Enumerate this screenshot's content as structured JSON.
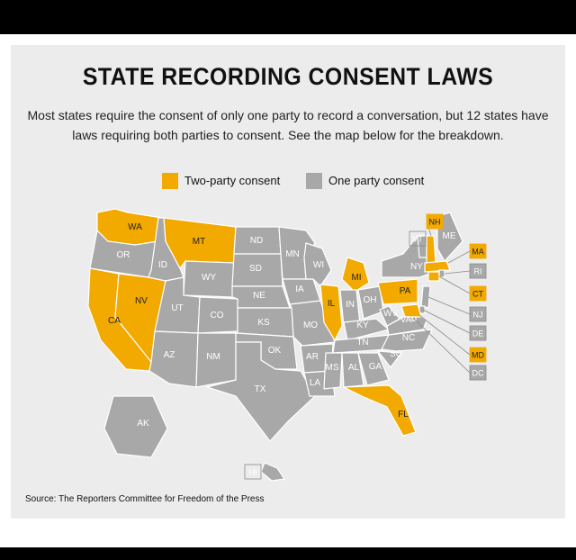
{
  "title": "STATE RECORDING CONSENT LAWS",
  "subtitle": "Most states require the consent of only one party to record a conversation, but 12 states have laws requiring both parties to consent. See the map below for the breakdown.",
  "legend": [
    {
      "label": "Two-party consent",
      "color": "#f2a900"
    },
    {
      "label": "One party consent",
      "color": "#a8a8a8"
    }
  ],
  "colors": {
    "two_party": "#f2a900",
    "one_party": "#a8a8a8",
    "border": "#ffffff",
    "background": "#ececec"
  },
  "source": "Source: The Reporters Committee for Freedom of the Press",
  "map_data": {
    "states": [
      {
        "id": "WA",
        "consent": "two"
      },
      {
        "id": "OR",
        "consent": "one"
      },
      {
        "id": "CA",
        "consent": "two"
      },
      {
        "id": "NV",
        "consent": "two"
      },
      {
        "id": "ID",
        "consent": "one"
      },
      {
        "id": "MT",
        "consent": "two"
      },
      {
        "id": "WY",
        "consent": "one"
      },
      {
        "id": "UT",
        "consent": "one"
      },
      {
        "id": "AZ",
        "consent": "one"
      },
      {
        "id": "CO",
        "consent": "one"
      },
      {
        "id": "NM",
        "consent": "one"
      },
      {
        "id": "ND",
        "consent": "one"
      },
      {
        "id": "SD",
        "consent": "one"
      },
      {
        "id": "NE",
        "consent": "one"
      },
      {
        "id": "KS",
        "consent": "one"
      },
      {
        "id": "OK",
        "consent": "one"
      },
      {
        "id": "TX",
        "consent": "one"
      },
      {
        "id": "MN",
        "consent": "one"
      },
      {
        "id": "IA",
        "consent": "one"
      },
      {
        "id": "MO",
        "consent": "one"
      },
      {
        "id": "AR",
        "consent": "one"
      },
      {
        "id": "LA",
        "consent": "one"
      },
      {
        "id": "WI",
        "consent": "one"
      },
      {
        "id": "IL",
        "consent": "two"
      },
      {
        "id": "MI",
        "consent": "two"
      },
      {
        "id": "IN",
        "consent": "one"
      },
      {
        "id": "OH",
        "consent": "one"
      },
      {
        "id": "KY",
        "consent": "one"
      },
      {
        "id": "TN",
        "consent": "one"
      },
      {
        "id": "MS",
        "consent": "one"
      },
      {
        "id": "AL",
        "consent": "one"
      },
      {
        "id": "GA",
        "consent": "one"
      },
      {
        "id": "FL",
        "consent": "two"
      },
      {
        "id": "SC",
        "consent": "one"
      },
      {
        "id": "NC",
        "consent": "one"
      },
      {
        "id": "VA",
        "consent": "one"
      },
      {
        "id": "WV",
        "consent": "one"
      },
      {
        "id": "PA",
        "consent": "two"
      },
      {
        "id": "NY",
        "consent": "one"
      },
      {
        "id": "ME",
        "consent": "one"
      },
      {
        "id": "AK",
        "consent": "one"
      },
      {
        "id": "HI",
        "consent": "one"
      },
      {
        "id": "VT",
        "consent": "one"
      },
      {
        "id": "NH",
        "consent": "two"
      },
      {
        "id": "MA",
        "consent": "two"
      },
      {
        "id": "RI",
        "consent": "one"
      },
      {
        "id": "CT",
        "consent": "two"
      },
      {
        "id": "NJ",
        "consent": "one"
      },
      {
        "id": "DE",
        "consent": "one"
      },
      {
        "id": "MD",
        "consent": "two"
      },
      {
        "id": "DC",
        "consent": "one"
      }
    ]
  }
}
